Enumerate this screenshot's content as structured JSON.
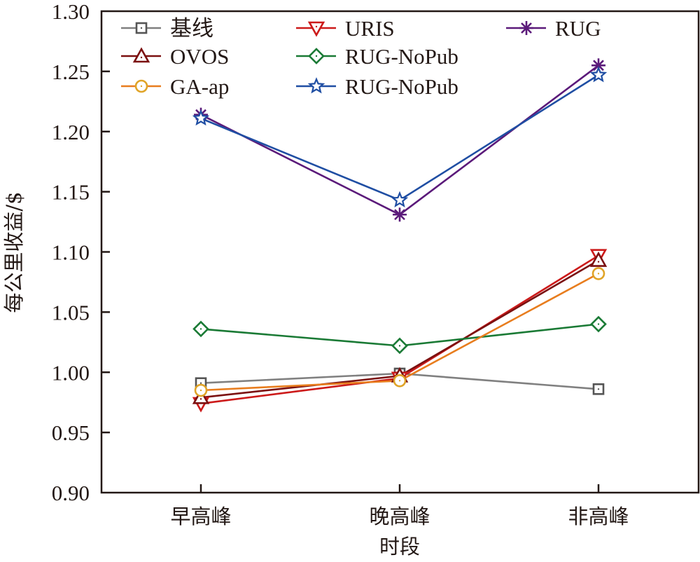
{
  "chart_data": {
    "type": "line",
    "title": "",
    "xlabel": "时段",
    "ylabel": "每公里收益/$",
    "categories": [
      "早高峰",
      "晚高峰",
      "非高峰"
    ],
    "ylim": [
      0.9,
      1.3
    ],
    "yticks": [
      "0.90",
      "0.95",
      "1.00",
      "1.05",
      "1.10",
      "1.15",
      "1.20",
      "1.25",
      "1.30"
    ],
    "ytick_values": [
      0.9,
      0.95,
      1.0,
      1.05,
      1.1,
      1.15,
      1.2,
      1.25,
      1.3
    ],
    "grid": false,
    "legend_position": "top",
    "series": [
      {
        "name": "基线",
        "marker": "square",
        "color": "#808080",
        "marker_color": "#555555",
        "values": [
          0.991,
          0.999,
          0.986
        ]
      },
      {
        "name": "URIS",
        "marker": "triangle-down",
        "color": "#cc1a1a",
        "marker_color": "#cc1a1a",
        "values": [
          0.974,
          0.995,
          1.097
        ]
      },
      {
        "name": "RUG",
        "marker": "asterisk",
        "color": "#5b1a7a",
        "marker_color": "#5b1a7a",
        "values": [
          1.214,
          1.131,
          1.255
        ]
      },
      {
        "name": "OVOS",
        "marker": "triangle-up",
        "color": "#7b1010",
        "marker_color": "#7b1010",
        "values": [
          0.979,
          0.997,
          1.093
        ]
      },
      {
        "name": "RUG-NoPub",
        "marker": "diamond",
        "color": "#1a7a35",
        "marker_color": "#1a7a35",
        "values": [
          1.036,
          1.022,
          1.04
        ]
      },
      {
        "name": "GA-ap",
        "marker": "circle",
        "color": "#e87d1e",
        "marker_color": "#e0a428",
        "values": [
          0.985,
          0.993,
          1.082
        ]
      },
      {
        "name": "RUG-NoPub",
        "marker": "star",
        "color": "#1f4ea3",
        "marker_color": "#1f4ea3",
        "values": [
          1.211,
          1.143,
          1.247
        ]
      }
    ],
    "legend_order": [
      0,
      1,
      2,
      3,
      4,
      5,
      6
    ]
  }
}
